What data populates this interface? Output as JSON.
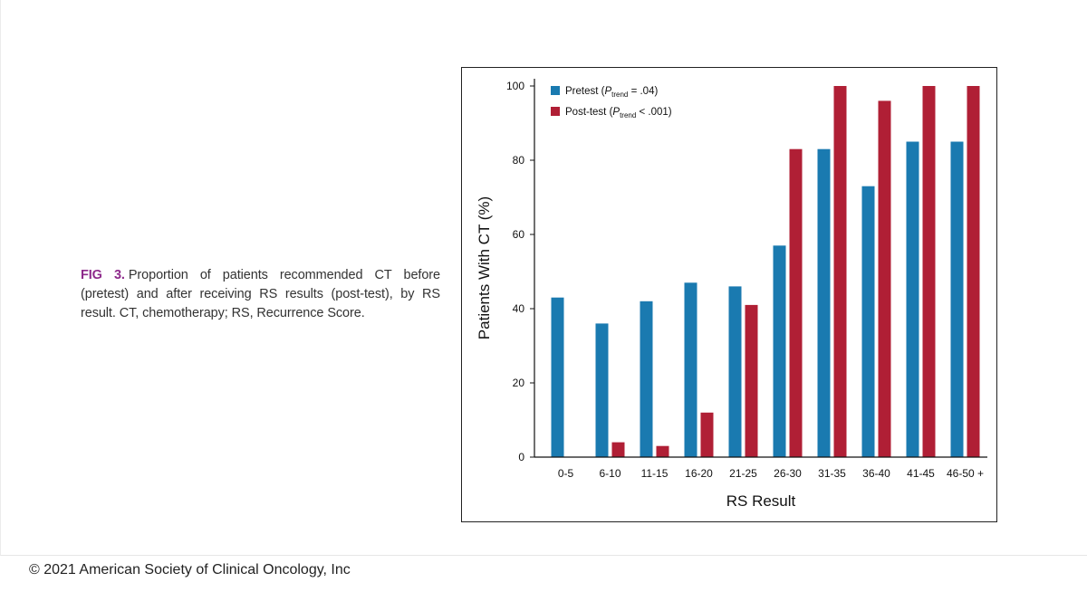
{
  "caption": {
    "label": "FIG 3.",
    "text": "Proportion of patients recommended CT before (pretest) and after receiving RS results (post-test), by RS result. CT, chemotherapy; RS, Recurrence Score."
  },
  "footer": {
    "copyright": "© 2021 American Society of Clinical Oncology, Inc"
  },
  "colors": {
    "pretest": "#1a7ab0",
    "posttest": "#b01f35"
  },
  "chart_data": {
    "type": "bar",
    "xlabel": "RS Result",
    "ylabel": "Patients With CT (%)",
    "ylim": [
      0,
      100
    ],
    "yticks": [
      0,
      20,
      40,
      60,
      80,
      100
    ],
    "grid": false,
    "legend_position": "top-left",
    "categories": [
      "0-5",
      "6-10",
      "11-15",
      "16-20",
      "21-25",
      "26-30",
      "31-35",
      "36-40",
      "41-45",
      "46-50 +"
    ],
    "series": [
      {
        "name": "Pretest",
        "legend": {
          "prefix": "Pretest (",
          "p": "P",
          "sub": "trend",
          "suffix": " = .04)"
        },
        "values": [
          43,
          36,
          42,
          47,
          46,
          57,
          83,
          73,
          85,
          85
        ]
      },
      {
        "name": "Post-test",
        "legend": {
          "prefix": "Post-test (",
          "p": "P",
          "sub": "trend",
          "suffix": " < .001)"
        },
        "values": [
          0,
          4,
          3,
          12,
          41,
          83,
          100,
          96,
          100,
          100
        ]
      }
    ]
  }
}
